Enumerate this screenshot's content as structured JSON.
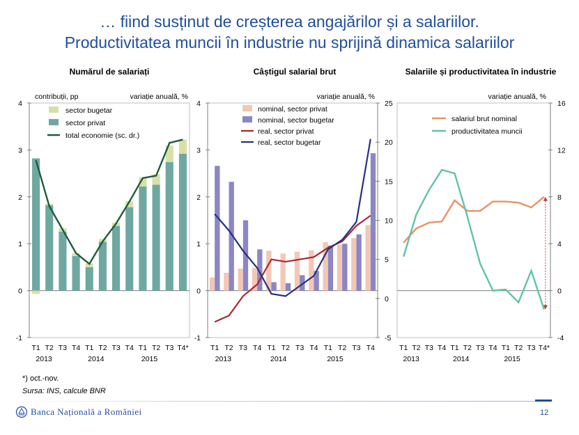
{
  "header": {
    "title_line1": "… fiind susținut de creșterea angajărilor și a salariilor.",
    "title_line2": "Productivitatea muncii în industrie nu sprijină dinamica salariilor"
  },
  "colors": {
    "title": "#1F4E9C",
    "bugetar_fill": "#D9DFA7",
    "privat_fill": "#6FA8A0",
    "total_line": "#1C5C3A",
    "nominal_privat": "#F2C7B5",
    "nominal_bugetar": "#8B86C4",
    "real_privat": "#A8282E",
    "real_bugetar": "#26317E",
    "salariu_line": "#E89365",
    "productivitate_line": "#5FC4A6",
    "arrow": "#C0392B"
  },
  "x_axis": {
    "quarter_labels": [
      "T1",
      "T2",
      "T3",
      "T4",
      "T1",
      "T2",
      "T3",
      "T4",
      "T1",
      "T2",
      "T3",
      "T4*"
    ],
    "year_labels": [
      "2013",
      "2014",
      "2015"
    ],
    "panel2_quarter_labels": [
      "T1",
      "T2",
      "T3",
      "T4",
      "T1",
      "T2",
      "T3",
      "T4",
      "T1",
      "T2",
      "T3",
      "T4"
    ]
  },
  "chart_data": [
    {
      "type": "bar",
      "title": "Numărul de salariați",
      "ylabel_left": "contribuții, pp",
      "ylabel_right": "variație anuală, %",
      "ylim": [
        -1,
        4
      ],
      "yticks": [
        "-1",
        "0",
        "1",
        "2",
        "3",
        "4"
      ],
      "legend_position": "top-right",
      "series": [
        {
          "name": "sector bugetar",
          "kind": "stacked-bar",
          "values": [
            -0.07,
            0.03,
            0.07,
            0.06,
            0.08,
            0.06,
            0.07,
            0.13,
            0.2,
            0.22,
            0.35,
            0.3
          ]
        },
        {
          "name": "sector privat",
          "kind": "stacked-bar",
          "values": [
            2.82,
            1.82,
            1.26,
            0.74,
            0.5,
            1.04,
            1.38,
            1.78,
            2.22,
            2.26,
            2.74,
            2.92
          ]
        },
        {
          "name": "total economie (sc. dr.)",
          "kind": "line",
          "values": [
            2.78,
            1.8,
            1.3,
            0.8,
            0.57,
            1.05,
            1.43,
            1.9,
            2.4,
            2.45,
            3.15,
            3.22
          ]
        }
      ]
    },
    {
      "type": "bar",
      "title": "Câștigul salarial brut",
      "ylabel_right": "variație anuală, %",
      "ylim_left": [
        -1,
        4
      ],
      "ylim_right": [
        -5,
        25
      ],
      "yticks_left": [
        "-1",
        "0",
        "1",
        "2",
        "3",
        "4"
      ],
      "yticks_right": [
        "-5",
        "0",
        "5",
        "10",
        "15",
        "20",
        "25"
      ],
      "legend_position": "top",
      "series": [
        {
          "name": "nominal, sector privat",
          "kind": "bar",
          "values": [
            0.28,
            0.38,
            0.47,
            0.48,
            0.85,
            0.79,
            0.83,
            0.86,
            1.03,
            0.98,
            1.12,
            1.4
          ]
        },
        {
          "name": "nominal, sector bugetar",
          "kind": "bar",
          "values": [
            2.66,
            2.32,
            1.5,
            0.88,
            0.18,
            0.16,
            0.33,
            0.42,
            0.96,
            1.0,
            1.2,
            2.93
          ]
        },
        {
          "name": "real, sector privat",
          "kind": "line",
          "values": [
            -3,
            -2.2,
            0.3,
            1.8,
            5.0,
            4.7,
            5.0,
            5.3,
            6.5,
            7.3,
            9.3,
            10.6
          ]
        },
        {
          "name": "real, sector bugetar",
          "kind": "line",
          "values": [
            10.8,
            8.7,
            6.1,
            3.9,
            0.6,
            0.3,
            1.6,
            2.9,
            6.3,
            7.5,
            9.8,
            20.4
          ]
        }
      ]
    },
    {
      "type": "line",
      "title": "Salariile și productivitatea în industrie",
      "ylabel_right": "variație anuală, %",
      "ylim": [
        -4,
        16
      ],
      "yticks": [
        "-4",
        "0",
        "4",
        "8",
        "12",
        "16"
      ],
      "legend_position": "top-left",
      "series": [
        {
          "name": "salariul brut nominal",
          "values": [
            4.1,
            5.3,
            5.8,
            5.9,
            7.7,
            6.8,
            6.8,
            7.6,
            7.6,
            7.5,
            7.1,
            8.0
          ]
        },
        {
          "name": "productivitatea muncii",
          "values": [
            2.9,
            6.5,
            8.6,
            10.3,
            10.0,
            6.3,
            2.3,
            0.0,
            0.1,
            -1.0,
            1.7,
            -1.6
          ]
        }
      ]
    }
  ],
  "footnotes": {
    "note": "*) oct.-nov.",
    "source": "Sursa: INS, calcule BNR"
  },
  "footer": {
    "logo_text": "Banca Națională a României",
    "page_number": "12"
  }
}
